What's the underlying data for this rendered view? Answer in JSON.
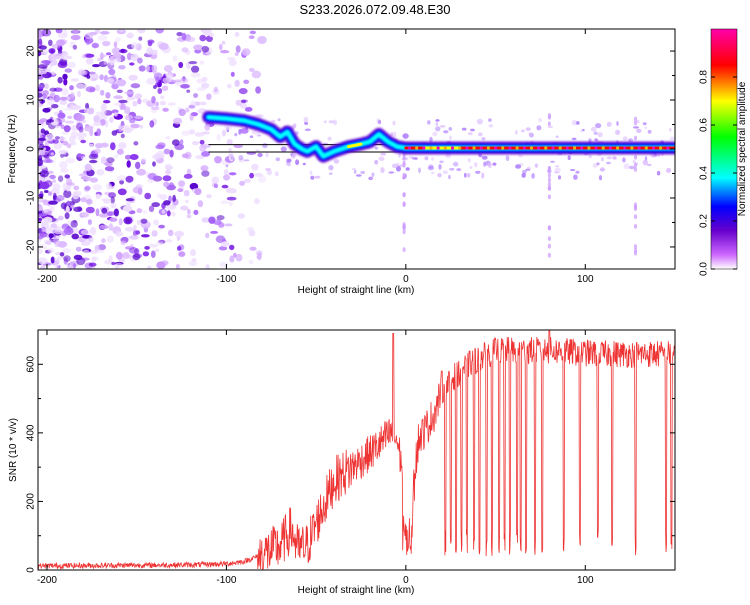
{
  "figure_title": "S233.2026.072.09.48.E30",
  "chart_data": [
    {
      "type": "heatmap",
      "title": "S233.2026.072.09.48.E30",
      "xlabel": "Height of straight line (km)",
      "ylabel": "Frequency (Hz)",
      "xlim": [
        -205,
        150
      ],
      "ylim": [
        -24.5,
        24.5
      ],
      "x_ticks": [
        -200,
        -100,
        0,
        100
      ],
      "y_ticks": [
        -20,
        -10,
        0,
        10,
        20
      ],
      "colorbar": {
        "label": "Normalized spectral amplitude",
        "range": [
          0,
          1
        ],
        "ticks": [
          0.0,
          0.2,
          0.4,
          0.6,
          0.8
        ],
        "colormap": [
          "#ffffff",
          "#cc66ff",
          "#6600cc",
          "#0000ff",
          "#00ffff",
          "#00ff00",
          "#ffff00",
          "#ff0000",
          "#ff00aa"
        ]
      },
      "reference_band_hz": [
        -0.6,
        0.9
      ],
      "ridge_track": [
        {
          "x": -110,
          "f": 6.5
        },
        {
          "x": -100,
          "f": 6.2
        },
        {
          "x": -90,
          "f": 5.8
        },
        {
          "x": -82,
          "f": 5.0
        },
        {
          "x": -75,
          "f": 4.0
        },
        {
          "x": -70,
          "f": 2.5
        },
        {
          "x": -66,
          "f": 3.5
        },
        {
          "x": -62,
          "f": 1.0
        },
        {
          "x": -58,
          "f": 0.0
        },
        {
          "x": -55,
          "f": -0.5
        },
        {
          "x": -50,
          "f": 0.5
        },
        {
          "x": -46,
          "f": -1.5
        },
        {
          "x": -40,
          "f": -0.5
        },
        {
          "x": -32,
          "f": 0.5
        },
        {
          "x": -25,
          "f": 1.0
        },
        {
          "x": -20,
          "f": 1.5
        },
        {
          "x": -15,
          "f": 3.0
        },
        {
          "x": -10,
          "f": 1.5
        },
        {
          "x": -5,
          "f": 0.5
        },
        {
          "x": 0,
          "f": 0.2
        },
        {
          "x": 10,
          "f": 0.2
        },
        {
          "x": 30,
          "f": 0.2
        },
        {
          "x": 60,
          "f": 0.2
        },
        {
          "x": 100,
          "f": 0.2
        },
        {
          "x": 150,
          "f": 0.2
        }
      ]
    },
    {
      "type": "line",
      "title": "",
      "xlabel": "Height of straight line (km)",
      "ylabel": "SNR (10 * v/v)",
      "xlim": [
        -205,
        150
      ],
      "ylim": [
        0,
        700
      ],
      "x_ticks": [
        -200,
        -100,
        0,
        100
      ],
      "y_ticks": [
        0,
        200,
        400,
        600
      ],
      "series": [
        {
          "name": "SNR",
          "color": "#ee3333",
          "envelope": [
            {
              "x": -205,
              "snr": 12
            },
            {
              "x": -120,
              "snr": 15
            },
            {
              "x": -100,
              "snr": 18
            },
            {
              "x": -90,
              "snr": 25
            },
            {
              "x": -80,
              "snr": 45
            },
            {
              "x": -70,
              "snr": 70
            },
            {
              "x": -64,
              "snr": 120
            },
            {
              "x": -60,
              "snr": 60
            },
            {
              "x": -55,
              "snr": 70
            },
            {
              "x": -48,
              "snr": 160
            },
            {
              "x": -40,
              "snr": 260
            },
            {
              "x": -30,
              "snr": 300
            },
            {
              "x": -20,
              "snr": 340
            },
            {
              "x": -12,
              "snr": 380
            },
            {
              "x": -8,
              "snr": 400
            },
            {
              "x": -5,
              "snr": 380
            },
            {
              "x": -2,
              "snr": 300
            },
            {
              "x": 0,
              "snr": 100
            },
            {
              "x": 3,
              "snr": 150
            },
            {
              "x": 7,
              "snr": 380
            },
            {
              "x": 12,
              "snr": 420
            },
            {
              "x": 16,
              "snr": 460
            },
            {
              "x": 20,
              "snr": 520
            },
            {
              "x": 26,
              "snr": 560
            },
            {
              "x": 35,
              "snr": 600
            },
            {
              "x": 50,
              "snr": 640
            },
            {
              "x": 80,
              "snr": 640
            },
            {
              "x": 110,
              "snr": 630
            },
            {
              "x": 150,
              "snr": 630
            }
          ],
          "spikes": [
            {
              "x": -7,
              "snr": 690
            },
            {
              "x": 20,
              "snr": 580
            },
            {
              "x": 80,
              "snr": 700
            }
          ],
          "dropouts_x": [
            22,
            25,
            28,
            31,
            34,
            38,
            41,
            45,
            48,
            52,
            55,
            58,
            62,
            64,
            67,
            72,
            76,
            80,
            88,
            97,
            107,
            115,
            128,
            145,
            148
          ]
        }
      ]
    }
  ]
}
